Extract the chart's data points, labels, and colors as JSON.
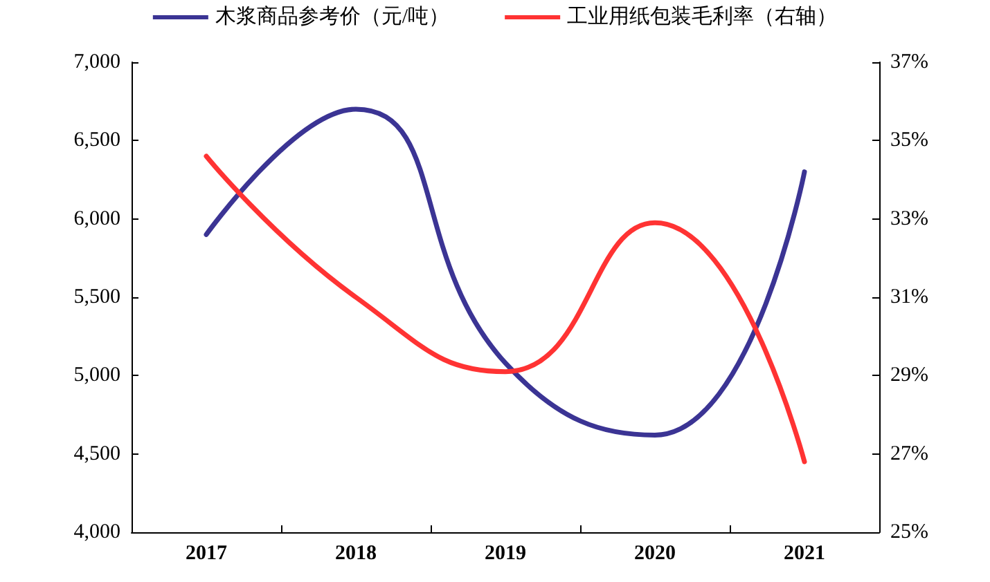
{
  "chart_data": {
    "type": "line",
    "categories": [
      "2017",
      "2018",
      "2019",
      "2020",
      "2021"
    ],
    "series": [
      {
        "name": "木浆商品参考价（元/吨）",
        "color": "#3b3494",
        "values": [
          5900,
          6700,
          5080,
          4620,
          6300
        ]
      },
      {
        "name": "工业用纸包装毛利率（右轴）",
        "color": "#ff3333",
        "values": [
          34.6,
          31.0,
          29.1,
          32.9,
          26.8
        ],
        "axis": "y2"
      }
    ],
    "ylim": [
      4000,
      7000
    ],
    "yticks": [
      {
        "value": 4000,
        "label": "4,000"
      },
      {
        "value": 4500,
        "label": "4,500"
      },
      {
        "value": 5000,
        "label": "5,000"
      },
      {
        "value": 5500,
        "label": "5,500"
      },
      {
        "value": 6000,
        "label": "6,000"
      },
      {
        "value": 6500,
        "label": "6,500"
      },
      {
        "value": 7000,
        "label": "7,000"
      }
    ],
    "y2lim": [
      25,
      37
    ],
    "y2ticks": [
      {
        "value": 25,
        "label": "25%"
      },
      {
        "value": 27,
        "label": "27%"
      },
      {
        "value": 29,
        "label": "29%"
      },
      {
        "value": 31,
        "label": "31%"
      },
      {
        "value": 33,
        "label": "33%"
      },
      {
        "value": 35,
        "label": "35%"
      },
      {
        "value": 37,
        "label": "37%"
      }
    ],
    "legend": "top",
    "grid": false,
    "marker": "none",
    "line_style": "solid"
  }
}
